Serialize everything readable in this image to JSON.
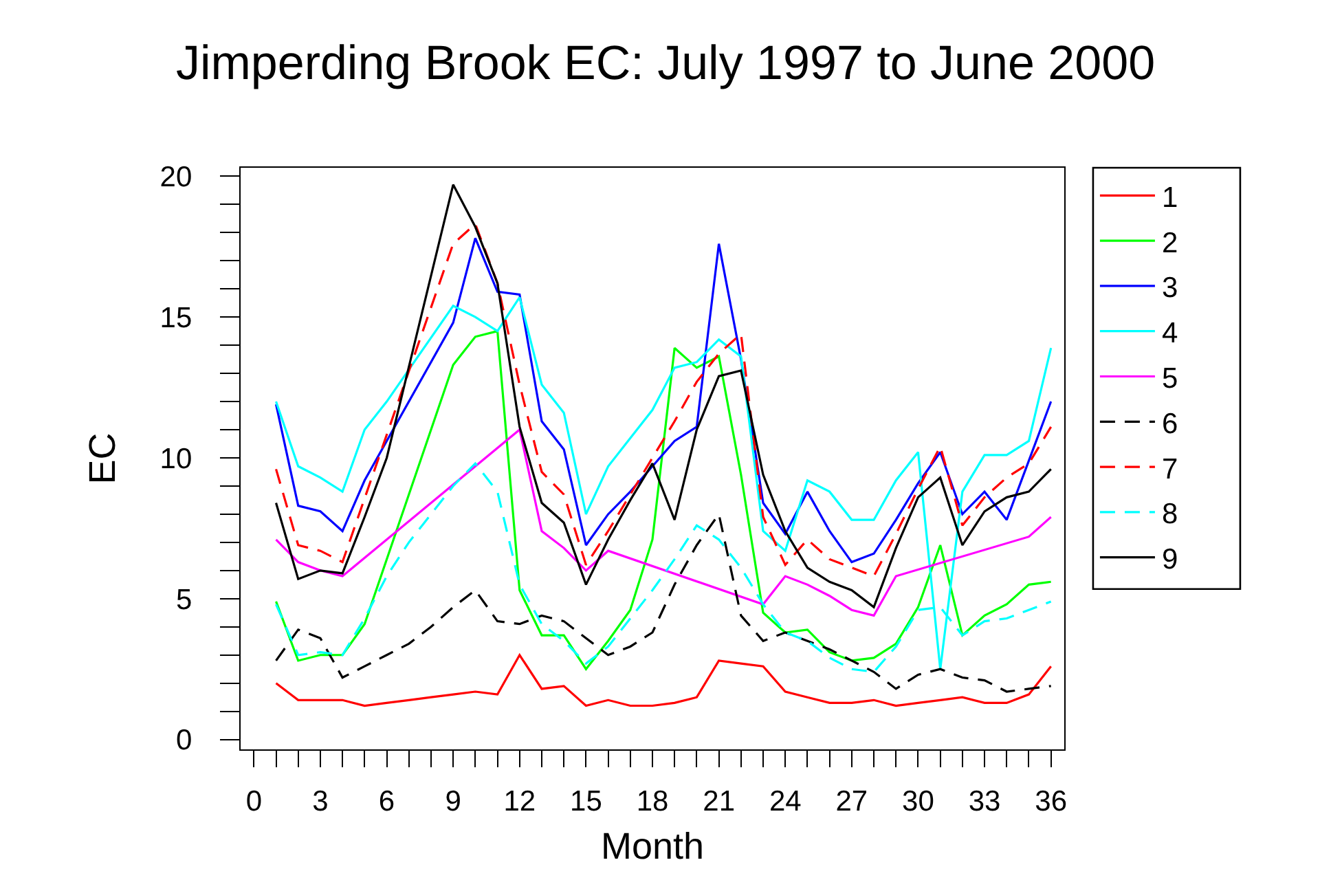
{
  "chart_data": {
    "type": "line",
    "title": "Jimperding Brook EC: July 1997 to June 2000",
    "xlabel": "Month",
    "ylabel": "EC",
    "x": [
      1,
      2,
      3,
      4,
      5,
      6,
      7,
      8,
      9,
      10,
      11,
      12,
      13,
      14,
      15,
      16,
      17,
      18,
      19,
      20,
      21,
      22,
      23,
      24,
      25,
      26,
      27,
      28,
      29,
      30,
      31,
      32,
      33,
      34,
      35,
      36
    ],
    "xlim": [
      -0.6,
      36.6
    ],
    "ylim": [
      -0.35,
      20.3
    ],
    "xticks": [
      0,
      {
        "value": 1,
        "label": null
      },
      {
        "value": 2,
        "label": null
      },
      3,
      {
        "value": 4,
        "label": null
      },
      {
        "value": 5,
        "label": null
      },
      6,
      {
        "value": 7,
        "label": null
      },
      {
        "value": 8,
        "label": null
      },
      9,
      {
        "value": 10,
        "label": null
      },
      {
        "value": 11,
        "label": null
      },
      12,
      {
        "value": 13,
        "label": null
      },
      {
        "value": 14,
        "label": null
      },
      15,
      {
        "value": 16,
        "label": null
      },
      {
        "value": 17,
        "label": null
      },
      18,
      {
        "value": 19,
        "label": null
      },
      {
        "value": 20,
        "label": null
      },
      21,
      {
        "value": 22,
        "label": null
      },
      {
        "value": 23,
        "label": null
      },
      24,
      {
        "value": 25,
        "label": null
      },
      {
        "value": 26,
        "label": null
      },
      27,
      {
        "value": 28,
        "label": null
      },
      {
        "value": 29,
        "label": null
      },
      30,
      {
        "value": 31,
        "label": null
      },
      {
        "value": 32,
        "label": null
      },
      33,
      {
        "value": 34,
        "label": null
      },
      {
        "value": 35,
        "label": null
      },
      36
    ],
    "yticks": [
      0,
      {
        "value": 1,
        "label": null
      },
      {
        "value": 2,
        "label": null
      },
      {
        "value": 3,
        "label": null
      },
      {
        "value": 4,
        "label": null
      },
      5,
      {
        "value": 6,
        "label": null
      },
      {
        "value": 7,
        "label": null
      },
      {
        "value": 8,
        "label": null
      },
      {
        "value": 9,
        "label": null
      },
      10,
      {
        "value": 11,
        "label": null
      },
      {
        "value": 12,
        "label": null
      },
      {
        "value": 13,
        "label": null
      },
      {
        "value": 14,
        "label": null
      },
      15,
      {
        "value": 16,
        "label": null
      },
      {
        "value": 17,
        "label": null
      },
      {
        "value": 18,
        "label": null
      },
      {
        "value": 19,
        "label": null
      },
      20
    ],
    "legend": "right",
    "series": [
      {
        "name": "1",
        "color": "#ff0000",
        "line_style": "solid",
        "values": [
          2.0,
          1.4,
          1.4,
          1.4,
          1.2,
          1.3,
          1.4,
          1.5,
          1.6,
          1.7,
          1.6,
          3.0,
          1.8,
          1.9,
          1.2,
          1.4,
          1.2,
          1.2,
          1.3,
          1.5,
          2.8,
          2.7,
          2.6,
          1.7,
          1.5,
          1.3,
          1.3,
          1.4,
          1.2,
          1.3,
          1.4,
          1.5,
          1.3,
          1.3,
          1.6,
          2.6
        ]
      },
      {
        "name": "2",
        "color": "#00ff00",
        "line_style": "solid",
        "x": [
          1,
          2,
          3,
          4,
          5,
          9,
          10,
          11,
          12,
          13,
          14,
          15,
          16,
          17,
          18,
          19,
          20,
          21,
          22,
          23,
          24,
          25,
          26,
          27,
          28,
          29,
          30,
          31,
          32,
          33,
          34,
          35,
          36
        ],
        "values": [
          4.9,
          2.8,
          3.0,
          3.0,
          4.1,
          13.3,
          14.3,
          14.5,
          5.3,
          3.7,
          3.7,
          2.5,
          3.5,
          4.6,
          7.1,
          13.9,
          13.2,
          13.6,
          9.4,
          4.5,
          3.8,
          3.9,
          3.1,
          2.8,
          2.9,
          3.4,
          4.7,
          6.9,
          3.7,
          4.4,
          4.8,
          5.5,
          5.6
        ]
      },
      {
        "name": "3",
        "color": "#0000ff",
        "line_style": "solid",
        "x": [
          1,
          2,
          3,
          4,
          5,
          9,
          10,
          11,
          12,
          13,
          14,
          15,
          16,
          17,
          18,
          19,
          20,
          21,
          22,
          23,
          24,
          25,
          26,
          27,
          28,
          29,
          30,
          31,
          32,
          33,
          34,
          35,
          36
        ],
        "values": [
          11.9,
          8.3,
          8.1,
          7.4,
          9.2,
          14.8,
          17.8,
          15.9,
          15.8,
          11.3,
          10.3,
          6.9,
          8.0,
          8.8,
          9.7,
          10.6,
          11.1,
          17.6,
          13.5,
          8.4,
          7.3,
          8.8,
          7.4,
          6.3,
          6.6,
          7.8,
          9.1,
          10.2,
          8.0,
          8.8,
          7.8,
          9.9,
          12.0
        ]
      },
      {
        "name": "4",
        "color": "#00ffff",
        "line_style": "solid",
        "x": [
          1,
          2,
          3,
          4,
          5,
          6,
          9,
          10,
          11,
          12,
          13,
          14,
          15,
          16,
          17,
          18,
          19,
          20,
          21,
          22,
          23,
          24,
          25,
          26,
          27,
          28,
          29,
          30,
          31,
          32,
          33,
          34,
          35,
          36
        ],
        "values": [
          12.0,
          9.7,
          9.3,
          8.8,
          11.0,
          12.0,
          15.4,
          15.0,
          14.5,
          15.7,
          12.6,
          11.6,
          8.0,
          9.7,
          10.7,
          11.7,
          13.2,
          13.4,
          14.2,
          13.6,
          7.4,
          6.7,
          9.2,
          8.8,
          7.8,
          7.8,
          9.2,
          10.2,
          2.5,
          8.8,
          10.1,
          10.1,
          10.6,
          13.9
        ]
      },
      {
        "name": "5",
        "color": "#ff00ff",
        "line_style": "solid",
        "x": [
          1,
          2,
          3,
          4,
          12,
          13,
          14,
          15,
          16,
          23,
          24,
          25,
          26,
          27,
          28,
          29,
          35,
          36
        ],
        "values": [
          7.1,
          6.3,
          6.0,
          5.8,
          11.0,
          7.4,
          6.8,
          6.0,
          6.7,
          4.8,
          5.8,
          5.5,
          5.1,
          4.6,
          4.4,
          5.8,
          7.2,
          7.9
        ]
      },
      {
        "name": "6",
        "color": "#000000",
        "line_style": "dashed",
        "values": [
          2.8,
          3.9,
          3.6,
          2.2,
          2.6,
          3.0,
          3.4,
          4.0,
          4.7,
          5.3,
          4.2,
          4.1,
          4.4,
          4.2,
          3.6,
          3.0,
          3.3,
          3.8,
          5.5,
          6.9,
          8.0,
          4.4,
          3.5,
          3.8,
          3.5,
          3.2,
          2.8,
          2.4,
          1.8,
          2.3,
          2.5,
          2.2,
          2.1,
          1.7,
          1.8,
          1.9
        ]
      },
      {
        "name": "7",
        "color": "#ff0000",
        "line_style": "dashed",
        "x": [
          1,
          2,
          3,
          4,
          9,
          10,
          11,
          12,
          13,
          14,
          15,
          16,
          17,
          18,
          19,
          20,
          21,
          22,
          23,
          24,
          25,
          26,
          27,
          28,
          29,
          30,
          31,
          32,
          33,
          34,
          35,
          36
        ],
        "values": [
          9.6,
          6.9,
          6.7,
          6.3,
          17.6,
          18.3,
          16.2,
          12.6,
          9.5,
          8.7,
          6.2,
          7.4,
          8.7,
          10.0,
          11.3,
          12.7,
          13.7,
          14.4,
          7.9,
          6.2,
          7.1,
          6.4,
          6.1,
          5.8,
          7.3,
          8.9,
          10.4,
          7.6,
          8.6,
          9.3,
          9.8,
          11.1
        ]
      },
      {
        "name": "8",
        "color": "#00ffff",
        "line_style": "dashed",
        "values": [
          4.8,
          3.0,
          3.1,
          3.0,
          4.3,
          5.8,
          7.0,
          8.0,
          9.0,
          9.8,
          8.8,
          5.5,
          4.1,
          3.5,
          2.7,
          3.3,
          4.3,
          5.3,
          6.4,
          7.6,
          7.1,
          6.1,
          4.8,
          3.8,
          3.5,
          2.9,
          2.5,
          2.4,
          3.3,
          4.6,
          4.7,
          3.7,
          4.2,
          4.3,
          4.6,
          4.9
        ]
      },
      {
        "name": "9",
        "color": "#000000",
        "line_style": "solid",
        "x": [
          1,
          2,
          3,
          4,
          5,
          6,
          9,
          10,
          11,
          12,
          13,
          14,
          15,
          16,
          17,
          18,
          19,
          20,
          21,
          22,
          23,
          24,
          25,
          26,
          27,
          28,
          29,
          30,
          31,
          32,
          33,
          34,
          35,
          36
        ],
        "values": [
          8.4,
          5.7,
          6.0,
          5.9,
          7.9,
          10.0,
          19.7,
          18.2,
          16.2,
          11.1,
          8.4,
          7.7,
          5.5,
          7.1,
          8.5,
          9.8,
          7.8,
          11.0,
          12.9,
          13.1,
          9.4,
          7.4,
          6.1,
          5.6,
          5.3,
          4.7,
          6.8,
          8.6,
          9.3,
          6.9,
          8.1,
          8.6,
          8.8,
          9.6
        ]
      }
    ]
  }
}
